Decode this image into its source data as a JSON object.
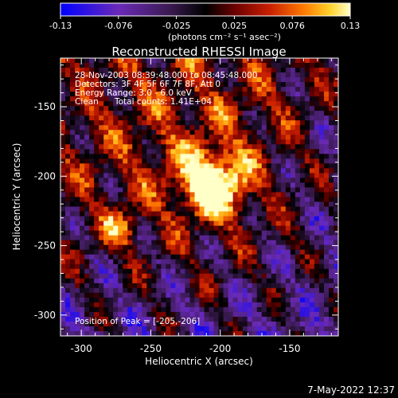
{
  "colorbar": {
    "ticks": [
      "-0.13",
      "-0.076",
      "-0.025",
      "0.025",
      "0.076",
      "0.13"
    ],
    "units_label": "(photons cm⁻² s⁻¹ asec⁻²)",
    "colors": [
      "#0000ff",
      "#6a2ab8",
      "#3a1a50",
      "#000000",
      "#6a0000",
      "#c81e00",
      "#ff7a00",
      "#ffd12a",
      "#ffffc8"
    ]
  },
  "chart_data": {
    "type": "heatmap",
    "title": "Reconstructed RHESSI Image",
    "xlabel": "Heliocentric X (arcsec)",
    "ylabel": "Heliocentric Y (arcsec)",
    "xlim": [
      -315,
      -115
    ],
    "ylim": [
      -315,
      -115
    ],
    "x_ticks": [
      "-300",
      "-250",
      "-200",
      "-150"
    ],
    "y_ticks": [
      "-150",
      "-200",
      "-250",
      "-300"
    ],
    "x_tick_values": [
      -300,
      -250,
      -200,
      -150
    ],
    "y_tick_values": [
      -150,
      -200,
      -250,
      -300
    ],
    "value_range": [
      -0.13,
      0.13
    ],
    "peak": [
      -205,
      -206
    ],
    "annotations": {
      "time": "28-Nov-2003 08:39:48.000 to 08:45:48.000",
      "detectors": "Detectors: 3F 4F 5F 6F 7F 8F, Att 0",
      "energy": "Energy Range: 3.0 - 6.0 keV",
      "clean": "Clean",
      "total_counts": "Total counts: 1.41E+04",
      "peak_label": "Position of Peak = [-205,-206]"
    }
  },
  "footer": {
    "timestamp": "7-May-2022 12:37"
  }
}
